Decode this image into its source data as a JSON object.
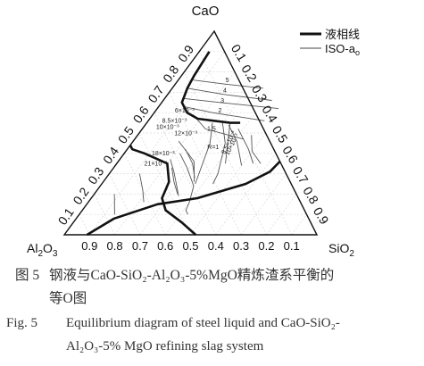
{
  "chart_data": {
    "type": "ternary",
    "vertices": {
      "top": {
        "text": "CaO"
      },
      "bottom_left": {
        "text": "Al",
        "sub": "2",
        "tail": "O",
        "sub2": "3"
      },
      "bottom_right": {
        "text": "SiO",
        "sub": "2"
      }
    },
    "tick_values": [
      "0.1",
      "0.2",
      "0.3",
      "0.4",
      "0.5",
      "0.6",
      "0.7",
      "0.8",
      "0.9"
    ],
    "bottom_tick_values": [
      "0.9",
      "0.8",
      "0.7",
      "0.6",
      "0.5",
      "0.4",
      "0.3",
      "0.2",
      "0.1"
    ],
    "legend": {
      "items": [
        {
          "label": "液相线",
          "style": "thick"
        },
        {
          "label": "ISO-a",
          "sub": "o",
          "style": "thin"
        }
      ]
    },
    "liquidus_lines": [
      {
        "name": "liquidus-upper",
        "points": [
          [
            0.9,
            0.04
          ],
          [
            0.78,
            0.05
          ],
          [
            0.72,
            0.06
          ],
          [
            0.65,
            0.08
          ],
          [
            0.6,
            0.13
          ],
          [
            0.57,
            0.19
          ],
          [
            0.56,
            0.26
          ],
          [
            0.55,
            0.33
          ],
          [
            0.55,
            0.37
          ]
        ]
      },
      {
        "name": "liquidus-lower",
        "points": [
          [
            0.0,
            0.52
          ],
          [
            0.06,
            0.43
          ],
          [
            0.12,
            0.33
          ],
          [
            0.18,
            0.28
          ],
          [
            0.26,
            0.26
          ],
          [
            0.35,
            0.2
          ],
          [
            0.4,
            0.08
          ],
          [
            0.42,
            0.02
          ],
          [
            0.44,
            0.0
          ]
        ]
      },
      {
        "name": "liquidus-right",
        "points": [
          [
            0.36,
            0.64
          ],
          [
            0.31,
            0.63
          ],
          [
            0.25,
            0.57
          ],
          [
            0.18,
            0.42
          ],
          [
            0.15,
            0.28
          ],
          [
            0.08,
            0.15
          ],
          [
            0.0,
            0.09
          ]
        ]
      }
    ],
    "iso_lines": [
      {
        "name": "iso-5",
        "points": [
          [
            0.76,
            0.06
          ],
          [
            0.74,
            0.2
          ],
          [
            0.72,
            0.36
          ]
        ]
      },
      {
        "name": "iso-4",
        "points": [
          [
            0.72,
            0.06
          ],
          [
            0.69,
            0.22
          ],
          [
            0.66,
            0.43
          ]
        ]
      },
      {
        "name": "iso-3",
        "points": [
          [
            0.67,
            0.07
          ],
          [
            0.65,
            0.23
          ],
          [
            0.62,
            0.48
          ]
        ]
      },
      {
        "name": "iso-2",
        "points": [
          [
            0.63,
            0.1
          ],
          [
            0.6,
            0.23
          ],
          [
            0.56,
            0.46
          ]
        ]
      },
      {
        "name": "iso-1.5",
        "points": [
          [
            0.59,
            0.16
          ],
          [
            0.52,
            0.25
          ],
          [
            0.47,
            0.43
          ]
        ]
      },
      {
        "name": "iso-1",
        "points": [
          [
            0.55,
            0.33
          ],
          [
            0.45,
            0.38
          ],
          [
            0.35,
            0.43
          ]
        ]
      },
      {
        "name": "iso-c1",
        "points": [
          [
            0.55,
            0.26
          ],
          [
            0.45,
            0.31
          ],
          [
            0.25,
            0.37
          ]
        ]
      },
      {
        "name": "iso-c2",
        "points": [
          [
            0.55,
            0.3
          ],
          [
            0.45,
            0.37
          ],
          [
            0.3,
            0.43
          ],
          [
            0.25,
            0.44
          ]
        ]
      },
      {
        "name": "iso-c3",
        "points": [
          [
            0.54,
            0.33
          ],
          [
            0.46,
            0.41
          ],
          [
            0.38,
            0.47
          ],
          [
            0.34,
            0.5
          ]
        ]
      },
      {
        "name": "iso-c4",
        "points": [
          [
            0.52,
            0.38
          ],
          [
            0.42,
            0.48
          ],
          [
            0.35,
            0.54
          ]
        ]
      },
      {
        "name": "iso-c5",
        "points": [
          [
            0.49,
            0.45
          ],
          [
            0.41,
            0.5
          ],
          [
            0.35,
            0.57
          ]
        ]
      },
      {
        "name": "iso-c6",
        "points": [
          [
            0.46,
            0.18
          ],
          [
            0.36,
            0.3
          ],
          [
            0.26,
            0.36
          ]
        ]
      },
      {
        "name": "iso-c7",
        "points": [
          [
            0.4,
            0.22
          ],
          [
            0.33,
            0.29
          ],
          [
            0.24,
            0.37
          ],
          [
            0.16,
            0.4
          ],
          [
            0.12,
            0.41
          ],
          [
            0.1,
            0.43
          ]
        ]
      },
      {
        "name": "iso-c8",
        "points": [
          [
            0.37,
            0.2
          ],
          [
            0.31,
            0.25
          ],
          [
            0.23,
            0.31
          ],
          [
            0.19,
            0.34
          ]
        ]
      },
      {
        "name": "iso-low1",
        "points": [
          [
            0.42,
            0.23
          ],
          [
            0.35,
            0.3
          ],
          [
            0.28,
            0.35
          ]
        ]
      },
      {
        "name": "iso-low2",
        "points": [
          [
            0.33,
            0.23
          ],
          [
            0.26,
            0.28
          ],
          [
            0.2,
            0.33
          ]
        ]
      },
      {
        "name": "iso-low3",
        "points": [
          [
            0.3,
            0.12
          ],
          [
            0.22,
            0.18
          ],
          [
            0.16,
            0.22
          ]
        ]
      },
      {
        "name": "iso-low4",
        "points": [
          [
            0.2,
            0.08
          ],
          [
            0.15,
            0.11
          ],
          [
            0.1,
            0.14
          ]
        ]
      }
    ],
    "curve_labels": [
      {
        "text": "5",
        "pos": [
          0.75,
          0.2
        ]
      },
      {
        "text": "4",
        "pos": [
          0.7,
          0.22
        ]
      },
      {
        "text": "3",
        "pos": [
          0.65,
          0.24
        ]
      },
      {
        "text": "2",
        "pos": [
          0.6,
          0.26
        ]
      },
      {
        "text": "1.5",
        "pos": [
          0.51,
          0.28
        ]
      },
      {
        "text": "6×10⁻³",
        "pos": [
          0.6,
          0.12
        ]
      },
      {
        "text": "8.5×10⁻³",
        "pos": [
          0.55,
          0.11
        ]
      },
      {
        "text": "10×10⁻³",
        "pos": [
          0.52,
          0.1
        ]
      },
      {
        "text": "12×10⁻³",
        "pos": [
          0.49,
          0.19
        ]
      },
      {
        "text": "R=1",
        "pos": [
          0.42,
          0.34
        ]
      },
      {
        "text": "18×10⁻³",
        "pos": [
          0.39,
          0.16
        ]
      },
      {
        "text": "21×10⁻³",
        "pos": [
          0.34,
          0.16
        ]
      },
      {
        "text": "8.5×10⁻³",
        "pos": [
          0.45,
          0.39
        ]
      },
      {
        "text": "10×10⁻³",
        "pos": [
          0.44,
          0.41
        ]
      }
    ]
  },
  "caption": {
    "cn_figure": "图 5",
    "cn_title_line1": "钢液与CaO-SiO₂-Al₂O₃-5%MgO精炼渣系平衡的",
    "cn_title_line2": "等O图",
    "en_figure": "Fig. 5",
    "en_title_line1": "Equilibrium  diagram  of  steel  liquid  and  CaO-SiO₂-",
    "en_title_line2": "Al₂O₃-5% MgO refining slag system"
  }
}
